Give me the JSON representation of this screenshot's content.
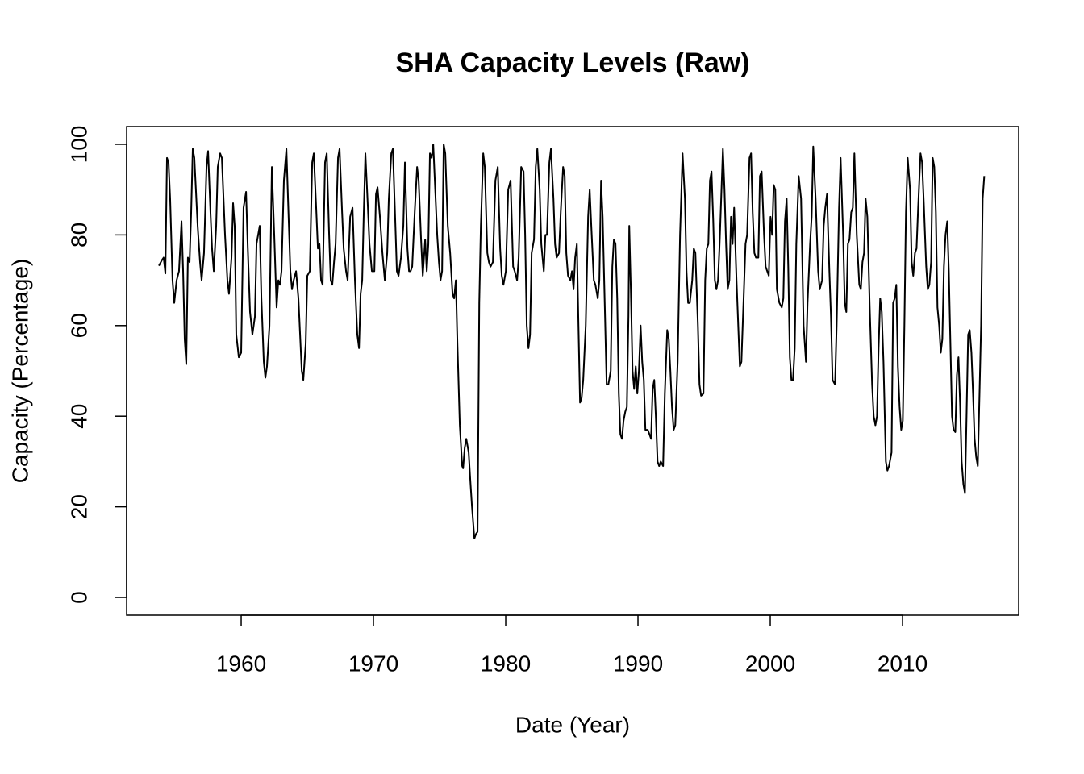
{
  "chart_data": {
    "type": "line",
    "title": "SHA Capacity Levels (Raw)",
    "x_label": "Date (Year)",
    "y_label": "Capacity (Percentage)",
    "xlim": [
      1951.34,
      2018.78
    ],
    "ylim": [
      -3.91,
      103.91
    ],
    "xticks": [
      1960,
      1970,
      1980,
      1990,
      2000,
      2010
    ],
    "yticks": [
      0,
      20,
      40,
      60,
      80,
      100
    ],
    "grid": false,
    "series": [
      {
        "color": "#000000",
        "x": [
          1953.78,
          1954.02,
          1954.14,
          1954.27,
          1954.39,
          1954.51,
          1954.63,
          1954.81,
          1954.94,
          1955.12,
          1955.3,
          1955.49,
          1955.61,
          1955.73,
          1955.85,
          1955.97,
          1956.1,
          1956.22,
          1956.34,
          1956.46,
          1956.71,
          1956.89,
          1957.01,
          1957.19,
          1957.38,
          1957.5,
          1957.68,
          1957.8,
          1957.93,
          1958.11,
          1958.23,
          1958.41,
          1958.54,
          1958.78,
          1958.96,
          1959.08,
          1959.27,
          1959.39,
          1959.51,
          1959.63,
          1959.82,
          1960.0,
          1960.18,
          1960.37,
          1960.49,
          1960.67,
          1960.85,
          1961.04,
          1961.16,
          1961.4,
          1961.53,
          1961.71,
          1961.83,
          1961.95,
          1962.14,
          1962.32,
          1962.5,
          1962.68,
          1962.81,
          1962.93,
          1963.05,
          1963.23,
          1963.42,
          1963.54,
          1963.72,
          1963.84,
          1963.97,
          1964.15,
          1964.33,
          1964.58,
          1964.7,
          1964.88,
          1965.0,
          1965.19,
          1965.37,
          1965.49,
          1965.67,
          1965.8,
          1965.92,
          1966.04,
          1966.16,
          1966.34,
          1966.47,
          1966.65,
          1966.77,
          1966.89,
          1967.02,
          1967.14,
          1967.32,
          1967.44,
          1967.63,
          1967.75,
          1967.93,
          1968.05,
          1968.24,
          1968.42,
          1968.6,
          1968.78,
          1968.91,
          1969.03,
          1969.15,
          1969.27,
          1969.39,
          1969.58,
          1969.7,
          1969.88,
          1970.07,
          1970.19,
          1970.31,
          1970.49,
          1970.68,
          1970.86,
          1971.04,
          1971.16,
          1971.35,
          1971.47,
          1971.65,
          1971.77,
          1971.9,
          1972.08,
          1972.26,
          1972.38,
          1972.57,
          1972.69,
          1972.81,
          1972.93,
          1973.12,
          1973.3,
          1973.42,
          1973.6,
          1973.73,
          1973.91,
          1974.03,
          1974.15,
          1974.27,
          1974.4,
          1974.52,
          1974.7,
          1974.82,
          1974.95,
          1975.07,
          1975.19,
          1975.31,
          1975.43,
          1975.62,
          1975.8,
          1975.98,
          1976.1,
          1976.23,
          1976.35,
          1976.53,
          1976.71,
          1976.78,
          1976.9,
          1977.02,
          1977.2,
          1977.32,
          1977.45,
          1977.63,
          1977.75,
          1977.87,
          1978.0,
          1978.12,
          1978.3,
          1978.42,
          1978.61,
          1978.73,
          1978.85,
          1979.03,
          1979.22,
          1979.4,
          1979.58,
          1979.7,
          1979.83,
          1980.01,
          1980.19,
          1980.37,
          1980.56,
          1980.68,
          1980.86,
          1980.98,
          1981.17,
          1981.35,
          1981.47,
          1981.59,
          1981.72,
          1981.84,
          1981.96,
          1982.14,
          1982.27,
          1982.39,
          1982.57,
          1982.69,
          1982.88,
          1983.0,
          1983.12,
          1983.3,
          1983.42,
          1983.61,
          1983.73,
          1983.85,
          1984.03,
          1984.16,
          1984.34,
          1984.46,
          1984.58,
          1984.71,
          1984.89,
          1985.01,
          1985.13,
          1985.25,
          1985.38,
          1985.5,
          1985.62,
          1985.74,
          1985.86,
          1986.05,
          1986.23,
          1986.35,
          1986.47,
          1986.66,
          1986.78,
          1986.96,
          1987.08,
          1987.21,
          1987.33,
          1987.51,
          1987.63,
          1987.76,
          1987.94,
          1988.06,
          1988.18,
          1988.3,
          1988.43,
          1988.55,
          1988.67,
          1988.79,
          1988.91,
          1989.04,
          1989.16,
          1989.28,
          1989.34,
          1989.46,
          1989.59,
          1989.71,
          1989.83,
          1989.95,
          1990.07,
          1990.2,
          1990.32,
          1990.44,
          1990.56,
          1990.74,
          1990.87,
          1990.99,
          1991.11,
          1991.23,
          1991.35,
          1991.48,
          1991.6,
          1991.72,
          1991.9,
          1992.03,
          1992.21,
          1992.33,
          1992.45,
          1992.57,
          1992.7,
          1992.82,
          1993.0,
          1993.18,
          1993.37,
          1993.55,
          1993.67,
          1993.79,
          1993.92,
          1994.1,
          1994.22,
          1994.34,
          1994.53,
          1994.65,
          1994.77,
          1994.95,
          1995.08,
          1995.2,
          1995.32,
          1995.44,
          1995.56,
          1995.69,
          1995.81,
          1995.93,
          1996.05,
          1996.17,
          1996.42,
          1996.54,
          1996.66,
          1996.78,
          1996.91,
          1997.03,
          1997.15,
          1997.27,
          1997.45,
          1997.58,
          1997.7,
          1997.82,
          1998.0,
          1998.13,
          1998.25,
          1998.43,
          1998.55,
          1998.67,
          1998.8,
          1998.92,
          1999.1,
          1999.22,
          1999.35,
          1999.53,
          1999.65,
          1999.77,
          1999.89,
          2000.02,
          2000.14,
          2000.26,
          2000.38,
          2000.5,
          2000.69,
          2000.87,
          2000.99,
          2001.11,
          2001.24,
          2001.36,
          2001.48,
          2001.6,
          2001.72,
          2001.85,
          2001.97,
          2002.15,
          2002.33,
          2002.52,
          2002.7,
          2002.82,
          2003.01,
          2003.13,
          2003.25,
          2003.43,
          2003.62,
          2003.74,
          2003.92,
          2004.04,
          2004.16,
          2004.29,
          2004.47,
          2004.59,
          2004.71,
          2004.9,
          2005.02,
          2005.2,
          2005.32,
          2005.51,
          2005.63,
          2005.75,
          2005.87,
          2005.99,
          2006.12,
          2006.24,
          2006.36,
          2006.54,
          2006.73,
          2006.85,
          2006.97,
          2007.09,
          2007.21,
          2007.34,
          2007.52,
          2007.7,
          2007.82,
          2007.95,
          2008.07,
          2008.19,
          2008.31,
          2008.43,
          2008.56,
          2008.74,
          2008.86,
          2008.98,
          2009.17,
          2009.29,
          2009.41,
          2009.53,
          2009.65,
          2009.78,
          2009.9,
          2010.02,
          2010.14,
          2010.26,
          2010.39,
          2010.57,
          2010.69,
          2010.81,
          2010.94,
          2011.06,
          2011.18,
          2011.36,
          2011.48,
          2011.61,
          2011.79,
          2011.91,
          2012.03,
          2012.16,
          2012.28,
          2012.4,
          2012.52,
          2012.64,
          2012.77,
          2012.89,
          2013.01,
          2013.13,
          2013.25,
          2013.38,
          2013.5,
          2013.62,
          2013.74,
          2013.86,
          2013.99,
          2014.11,
          2014.23,
          2014.35,
          2014.47,
          2014.6,
          2014.72,
          2014.84,
          2014.96,
          2015.08,
          2015.21,
          2015.33,
          2015.45,
          2015.57,
          2015.69,
          2015.82,
          2015.94,
          2016.06,
          2016.18
        ],
        "values": [
          73.2,
          74.5,
          75,
          71.5,
          97,
          96,
          88,
          70,
          65,
          70,
          72,
          83,
          72,
          57,
          51.5,
          75,
          74,
          85,
          99,
          97,
          82,
          74,
          70,
          76,
          95,
          98.5,
          85,
          77,
          72,
          82,
          95,
          98,
          97,
          80,
          70,
          67,
          75,
          87,
          82,
          58,
          53,
          54,
          86,
          89.5,
          78,
          63,
          58,
          62,
          78,
          82,
          66,
          52,
          48.5,
          51,
          60,
          95,
          80,
          64,
          70,
          69,
          72,
          92,
          99,
          88,
          72,
          68,
          70,
          72,
          66,
          50,
          48,
          56,
          71,
          72,
          96,
          98,
          86,
          77,
          78,
          70,
          69,
          96,
          98,
          80,
          70,
          69,
          74,
          78,
          97,
          99,
          85,
          77,
          72,
          70,
          84,
          86,
          70,
          58,
          55,
          67,
          70,
          85,
          98,
          86,
          78,
          72,
          72,
          89,
          90.5,
          84,
          76,
          70,
          76,
          88,
          98,
          99,
          83,
          72,
          71,
          75,
          82,
          96,
          77,
          72,
          72,
          73,
          85,
          95,
          92,
          79,
          71,
          79,
          72,
          78,
          98,
          97,
          100,
          88,
          80,
          74,
          70,
          72,
          100,
          98,
          82,
          76,
          67,
          66,
          70,
          56,
          38,
          29,
          28.5,
          33,
          35,
          32,
          26,
          20,
          13,
          14,
          14.5,
          65,
          82,
          98,
          95,
          76,
          74,
          73,
          74,
          92,
          95,
          77,
          71,
          69,
          72,
          90,
          92,
          73,
          72,
          70,
          75,
          95,
          94,
          80,
          60,
          55,
          58,
          76,
          79,
          95,
          99,
          90,
          78,
          72,
          80,
          80,
          96,
          99,
          88,
          78,
          75,
          76,
          85,
          95,
          93,
          76,
          71,
          70,
          72,
          68,
          75,
          78,
          60,
          43,
          44,
          48,
          60,
          84,
          90,
          82,
          70,
          69,
          66,
          70,
          92,
          84,
          62,
          47,
          47,
          50,
          73,
          79,
          78,
          66,
          45,
          36,
          35,
          39,
          41,
          42,
          62,
          82,
          68,
          50,
          46,
          51,
          45,
          50,
          60,
          52,
          48,
          37,
          37,
          36,
          35,
          46,
          48,
          40,
          30,
          29,
          30,
          29,
          45,
          59,
          57,
          50,
          42,
          37,
          38,
          52,
          80,
          98,
          88,
          72,
          65,
          65,
          70,
          77,
          76,
          60,
          47,
          44.5,
          45,
          70,
          77,
          78,
          92,
          94,
          83,
          70,
          68,
          70,
          78,
          99,
          90,
          78,
          68,
          70,
          84,
          78,
          86,
          70,
          60,
          51,
          52,
          67,
          78,
          80,
          97,
          98,
          85,
          76,
          75,
          75,
          93,
          94,
          80,
          73,
          72,
          71,
          84,
          80,
          91,
          90,
          68,
          65,
          64,
          66,
          83,
          88,
          73,
          53,
          48,
          48,
          55,
          78,
          93,
          88,
          60,
          52,
          65,
          78,
          84,
          99.5,
          88,
          72,
          68,
          70,
          82,
          86,
          89,
          72,
          62,
          48,
          47,
          60,
          86,
          97,
          80,
          65,
          63,
          78,
          79,
          85,
          86,
          98,
          80,
          69,
          68,
          74,
          76,
          88,
          84,
          64,
          47,
          40,
          38,
          40,
          55,
          66,
          63,
          52,
          30,
          28,
          29,
          32,
          65,
          66,
          69,
          51,
          42,
          37,
          39,
          60,
          85,
          97,
          90,
          74,
          71,
          76,
          77,
          86,
          98,
          96,
          87,
          73,
          68,
          69,
          74,
          97,
          95,
          85,
          64,
          60,
          54,
          57,
          73,
          80,
          83,
          72,
          56,
          40,
          37,
          36.5,
          49,
          53,
          43,
          30,
          25,
          23,
          40,
          58,
          59,
          54,
          45,
          35,
          31,
          29,
          45,
          60,
          88,
          93
        ]
      }
    ]
  }
}
